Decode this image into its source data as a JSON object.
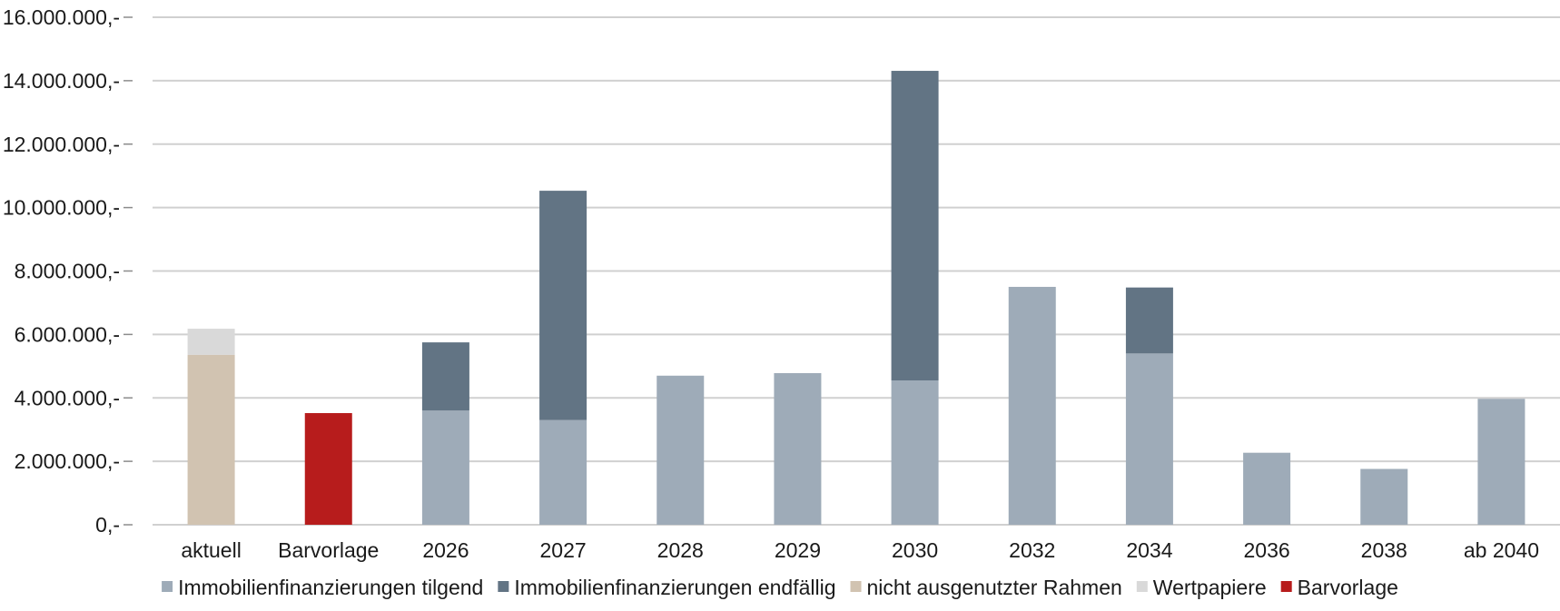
{
  "chart_data": {
    "type": "bar",
    "stacked": true,
    "categories": [
      "aktuell",
      "Barvorlage",
      "2026",
      "2027",
      "2028",
      "2029",
      "2030",
      "2032",
      "2034",
      "2036",
      "2038",
      "ab 2040"
    ],
    "series": [
      {
        "name": "Immobilienfinanzierungen tilgend",
        "color": "#9eabb8",
        "values": [
          0,
          0,
          3600000,
          3300000,
          4700000,
          4780000,
          4550000,
          7500000,
          5400000,
          2270000,
          1760000,
          3970000
        ]
      },
      {
        "name": "Immobilienfinanzierungen endfällig",
        "color": "#627484",
        "values": [
          0,
          0,
          2150000,
          7230000,
          0,
          0,
          9760000,
          0,
          2080000,
          0,
          0,
          0
        ]
      },
      {
        "name": "nicht ausgenutzter Rahmen",
        "color": "#d1c3b1",
        "values": [
          5360000,
          0,
          0,
          0,
          0,
          0,
          0,
          0,
          0,
          0,
          0,
          0
        ]
      },
      {
        "name": "Wertpapiere",
        "color": "#d9d9d9",
        "values": [
          820000,
          0,
          0,
          0,
          0,
          0,
          0,
          0,
          0,
          0,
          0,
          0
        ]
      },
      {
        "name": "Barvorlage",
        "color": "#b71c1c",
        "values": [
          0,
          3520000,
          0,
          0,
          0,
          0,
          0,
          0,
          0,
          0,
          0,
          0
        ]
      }
    ],
    "ylim": [
      0,
      16000000
    ],
    "yticks": [
      0,
      2000000,
      4000000,
      6000000,
      8000000,
      10000000,
      12000000,
      14000000,
      16000000
    ],
    "ytick_labels": [
      "0,-",
      "2.000.000,-",
      "4.000.000,-",
      "6.000.000,-",
      "8.000.000,-",
      "10.000.000,-",
      "12.000.000,-",
      "14.000.000,-",
      "16.000.000,-"
    ],
    "grid": true,
    "legend_position": "bottom",
    "title": "",
    "xlabel": "",
    "ylabel": ""
  }
}
